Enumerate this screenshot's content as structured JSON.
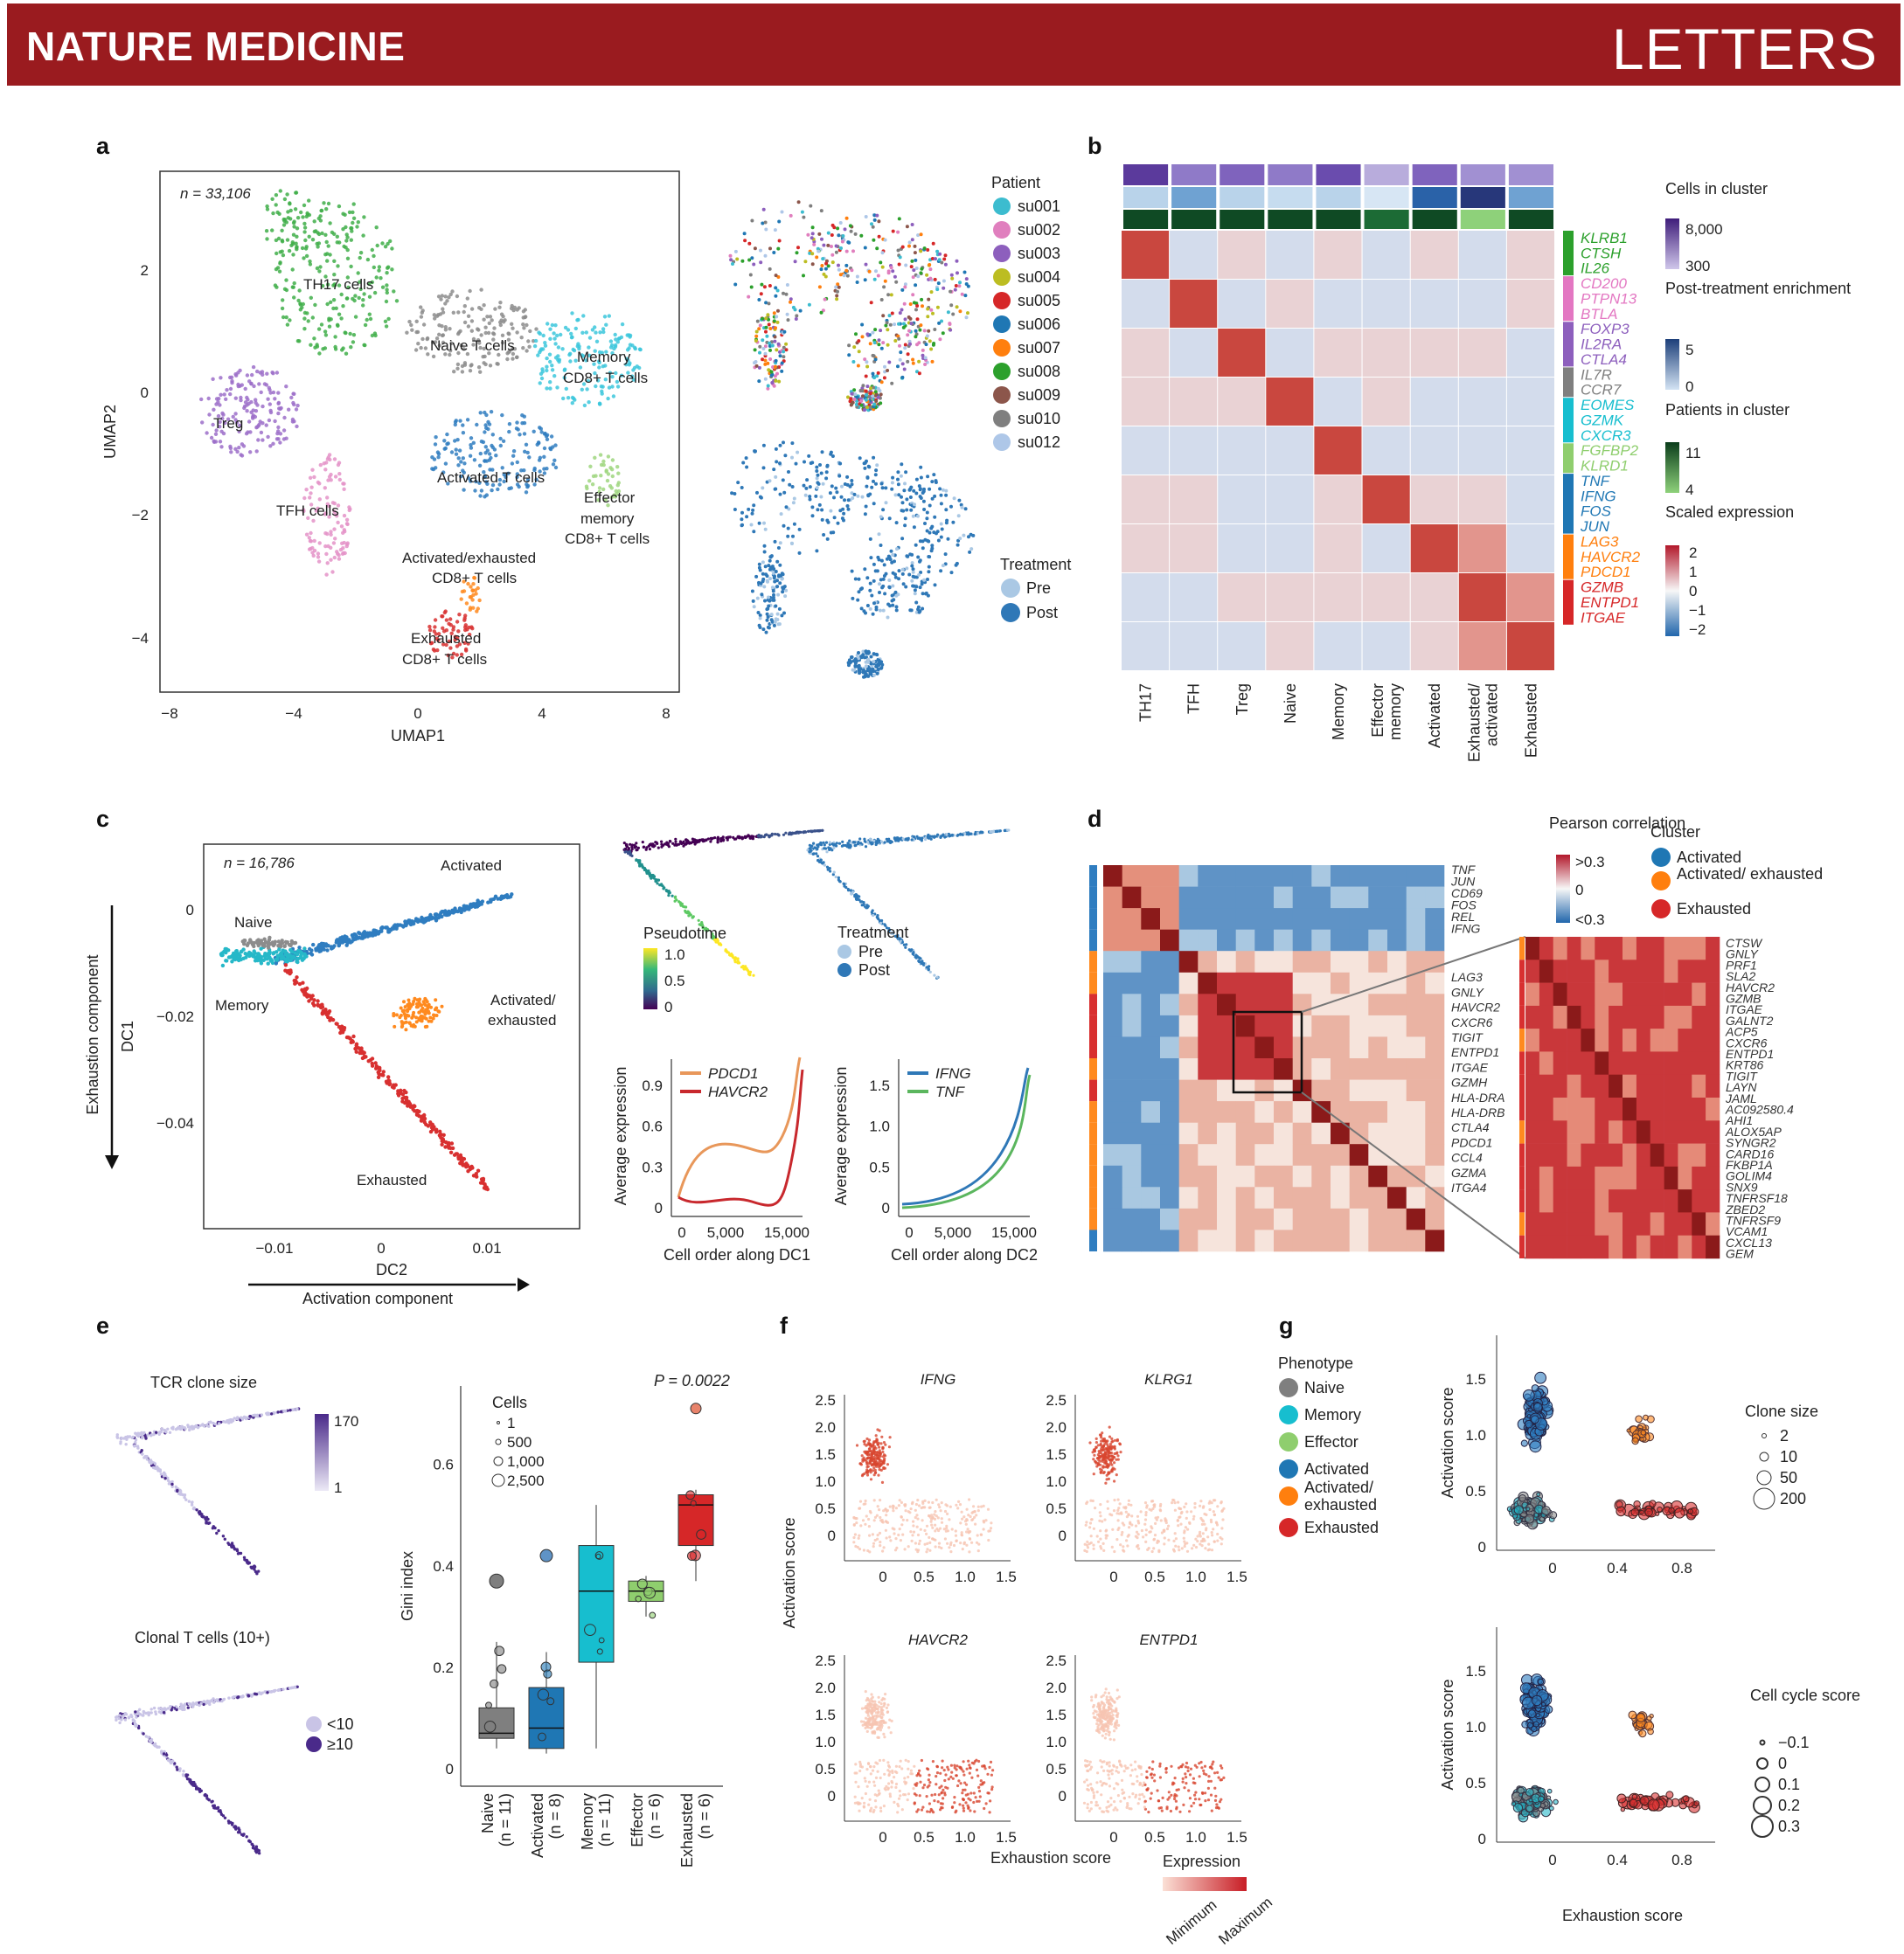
{
  "header": {
    "journal": "NATURE MEDICINE",
    "section": "LETTERS"
  },
  "panels": {
    "a": {
      "label": "a",
      "n": "n = 33,106",
      "xlabel": "UMAP1",
      "ylabel": "UMAP2",
      "xticks": [
        "−8",
        "−4",
        "0",
        "4",
        "8"
      ],
      "yticks": [
        "2",
        "0",
        "−2",
        "−4"
      ],
      "clusters": [
        "TH17 cells",
        "Naive T cells",
        "Memory",
        "CD8+ T cells",
        "Treg",
        "Activated T cells",
        "TFH cells",
        "Effector",
        "memory",
        "CD8+ T cells",
        "Activated/exhausted",
        "CD8+ T cells",
        "Exhausted",
        "CD8+ T cells"
      ],
      "patient_legend_title": "Patient",
      "patients": [
        "su001",
        "su002",
        "su003",
        "su004",
        "su005",
        "su006",
        "su007",
        "su008",
        "su009",
        "su010",
        "su012"
      ],
      "patient_colors": [
        "#3cbccf",
        "#e07fbe",
        "#8d5fbd",
        "#bcbd22",
        "#d62728",
        "#1f77b4",
        "#ff7f0e",
        "#2ca02c",
        "#8c564b",
        "#7f7f7f",
        "#aec7e8"
      ],
      "treatment_title": "Treatment",
      "treatment": [
        "Pre",
        "Post"
      ]
    },
    "b": {
      "label": "b",
      "columns": [
        "TH17",
        "TFH",
        "Treg",
        "Naive",
        "Memory",
        "Effector memory",
        "Activated",
        "Exhausted/ activated",
        "Exhausted"
      ],
      "gene_groups": [
        {
          "genes": [
            "KLRB1",
            "CTSH",
            "IL26"
          ],
          "color": "#2ca02c"
        },
        {
          "genes": [
            "CD200",
            "PTPN13",
            "BTLA"
          ],
          "color": "#e377c2"
        },
        {
          "genes": [
            "FOXP3",
            "IL2RA",
            "CTLA4"
          ],
          "color": "#8d5fbd"
        },
        {
          "genes": [
            "IL7R",
            "CCR7"
          ],
          "color": "#7f7f7f"
        },
        {
          "genes": [
            "EOMES",
            "GZMK",
            "CXCR3"
          ],
          "color": "#17becf"
        },
        {
          "genes": [
            "FGFBP2",
            "KLRD1"
          ],
          "color": "#8fce6e"
        },
        {
          "genes": [
            "TNF",
            "IFNG",
            "FOS",
            "JUN"
          ],
          "color": "#1f77b4"
        },
        {
          "genes": [
            "LAG3",
            "HAVCR2",
            "PDCD1"
          ],
          "color": "#ff7f0e"
        },
        {
          "genes": [
            "GZMB",
            "ENTPD1",
            "ITGAE"
          ],
          "color": "#d62728"
        }
      ],
      "legend": {
        "cells": "Cells in cluster",
        "cells_max": "8,000",
        "cells_min": "300",
        "post": "Post-treatment enrichment",
        "post_max": "5",
        "post_min": "0",
        "patients": "Patients in cluster",
        "patients_max": "11",
        "patients_min": "4",
        "scaled": "Scaled expression",
        "scaled_ticks": [
          "2",
          "1",
          "0",
          "−1",
          "−2"
        ]
      }
    },
    "c": {
      "label": "c",
      "n": "n = 16,786",
      "xlabel": "DC2",
      "ylabel": "DC1",
      "x_arrow": "Activation component",
      "y_arrow": "Exhaustion component",
      "xticks": [
        "−0.01",
        "0",
        "0.01"
      ],
      "yticks": [
        "0",
        "−0.02",
        "−0.04"
      ],
      "groups": [
        "Activated",
        "Naive",
        "Memory",
        "Activated/",
        "exhausted",
        "Exhausted"
      ],
      "pseudotime": "Pseudotime",
      "pseudo_ticks": [
        "1.0",
        "0.5",
        "0"
      ],
      "treatment": "Treatment",
      "treat_items": [
        "Pre",
        "Post"
      ],
      "line1_legend": [
        "PDCD1",
        "HAVCR2"
      ],
      "line1_yticks": [
        "0.9",
        "0.6",
        "0.3",
        "0"
      ],
      "line1_xlabel": "Cell order along DC1",
      "line2_legend": [
        "IFNG",
        "TNF"
      ],
      "line2_yticks": [
        "1.5",
        "1.0",
        "0.5",
        "0"
      ],
      "line2_xlabel": "Cell order along DC2",
      "line_xticks": [
        "0",
        "5,000",
        "15,000"
      ],
      "line_ylabel": "Average expression"
    },
    "d": {
      "label": "d",
      "pearson": "Pearson correlation",
      "pearson_ticks": [
        ">0.3",
        "0",
        "<0.3"
      ],
      "cluster_title": "Cluster",
      "clusters": [
        "Activated",
        "Activated/ exhausted",
        "Exhausted"
      ],
      "left_genes": [
        "TNF",
        "JUN",
        "CD69",
        "FOS",
        "REL",
        "IFNG",
        "LAG3",
        "GNLY",
        "HAVCR2",
        "CXCR6",
        "TIGIT",
        "ENTPD1",
        "ITGAE",
        "GZMH",
        "HLA-DRA",
        "HLA-DRB",
        "CTLA4",
        "PDCD1",
        "CCL4",
        "GZMA",
        "ITGA4"
      ],
      "zoom_genes": [
        "CTSW",
        "GNLY",
        "PRF1",
        "SLA2",
        "HAVCR2",
        "GZMB",
        "ITGAE",
        "GALNT2",
        "ACP5",
        "CXCR6",
        "ENTPD1",
        "KRT86",
        "TIGIT",
        "LAYN",
        "JAML",
        "AC092580.4",
        "AHI1",
        "ALOX5AP",
        "SYNGR2",
        "CARD16",
        "FKBP1A",
        "GOLIM4",
        "SNX9",
        "TNFRSF18",
        "ZBED2",
        "TNFRSF9",
        "VCAM1",
        "CXCL13",
        "GEM"
      ],
      "zoom_highlight": [
        "HAVCR2",
        "ITGAE",
        "CXCR6",
        "ENTPD1",
        "TIGIT",
        "CXCL13"
      ]
    },
    "e": {
      "label": "e",
      "clone_title": "TCR clone size",
      "clone_max": "170",
      "clone_min": "1",
      "clonal_title": "Clonal T cells (10+)",
      "clonal_items": [
        "<10",
        "≥10"
      ],
      "ylabel": "Gini index",
      "yticks": [
        "0.6",
        "0.4",
        "0.2",
        "0"
      ],
      "pval": "P = 0.0022",
      "cells_title": "Cells",
      "cells_items": [
        "1",
        "500",
        "1,000",
        "2,500"
      ],
      "categories": [
        "Naive",
        "Activated",
        "Memory",
        "Effector",
        "Exhausted"
      ],
      "ns": [
        "(n = 11)",
        "(n = 8)",
        "(n = 11)",
        "(n = 6)",
        "(n = 6)"
      ],
      "colors": [
        "#7f7f7f",
        "#1f77b4",
        "#17becf",
        "#8fce6e",
        "#d62728"
      ]
    },
    "f": {
      "label": "f",
      "genes": [
        "IFNG",
        "KLRG1",
        "HAVCR2",
        "ENTPD1"
      ],
      "yticks": [
        "2.5",
        "2.0",
        "1.5",
        "1.0",
        "0.5",
        "0"
      ],
      "xticks": [
        "0",
        "0.5",
        "1.0",
        "1.5"
      ],
      "ylabel": "Activation score",
      "xlabel": "Exhaustion score",
      "expr_title": "Expression",
      "expr_min": "Minimum",
      "expr_max": "Maximum"
    },
    "g": {
      "label": "g",
      "phenotype_title": "Phenotype",
      "phenotypes": [
        "Naive",
        "Memory",
        "Effector",
        "Activated",
        "Activated/ exhausted",
        "Exhausted"
      ],
      "phen_colors": [
        "#7f7f7f",
        "#17becf",
        "#8fce6e",
        "#1f77b4",
        "#ff7f0e",
        "#d62728"
      ],
      "yticks": [
        "1.5",
        "1.0",
        "0.5",
        "0"
      ],
      "xticks": [
        "0",
        "0.4",
        "0.8"
      ],
      "ylabel": "Activation score",
      "xlabel": "Exhaustion score",
      "clone_title": "Clone size",
      "clone_items": [
        "2",
        "10",
        "50",
        "200"
      ],
      "cycle_title": "Cell cycle score",
      "cycle_items": [
        "−0.1",
        "0",
        "0.1",
        "0.2",
        "0.3"
      ]
    }
  }
}
